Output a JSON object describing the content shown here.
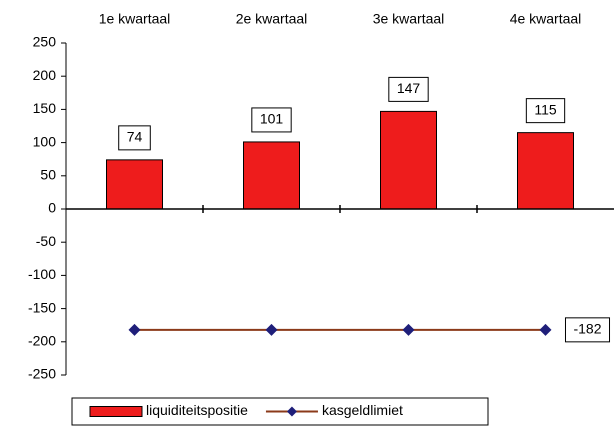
{
  "chart_data": {
    "type": "combo",
    "categories": [
      "1e kwartaal",
      "2e kwartaal",
      "3e kwartaal",
      "4e kwartaal"
    ],
    "series": [
      {
        "name": "liquiditeitspositie",
        "type": "bar",
        "color": "#ee1c1c",
        "values": [
          74,
          101,
          147,
          115
        ]
      },
      {
        "name": "kasgeldlimiet",
        "type": "line",
        "color": "#8b3a1a",
        "marker_color": "#1f1f7a",
        "values": [
          -182,
          -182,
          -182,
          -182
        ]
      }
    ],
    "ylim": [
      -250,
      250
    ],
    "yticks": [
      -250,
      -200,
      -150,
      -100,
      -50,
      0,
      50,
      100,
      150,
      200,
      250
    ],
    "legend": "bottom"
  }
}
